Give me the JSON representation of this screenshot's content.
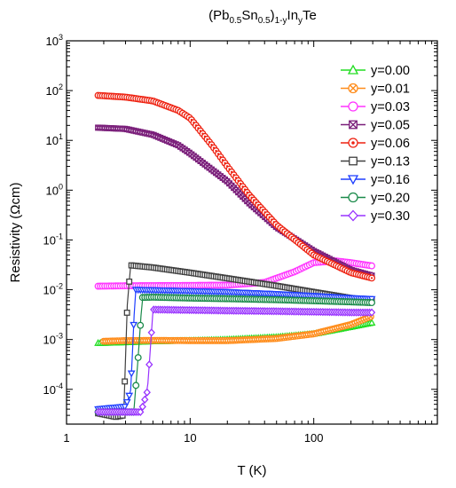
{
  "chart_data": {
    "type": "scatter",
    "title": {
      "base1": "(Pb",
      "sub1": "0.5",
      "base2": "Sn",
      "sub2": "0.5",
      "base3": ")",
      "sub3": "1-y",
      "base4": "In",
      "sub4": "y",
      "base5": "Te"
    },
    "xlabel": "T (K)",
    "ylabel": "Resistivity (Ωcm)",
    "xscale": "log",
    "yscale": "log",
    "xlim": [
      1,
      1000
    ],
    "ylim": [
      2e-05,
      1000
    ],
    "x_ticks": [
      1,
      10,
      100
    ],
    "x_tick_labels": [
      "1",
      "10",
      "100"
    ],
    "y_ticks": [
      0.0001,
      0.001,
      0.01,
      0.1,
      1,
      10,
      100,
      1000
    ],
    "y_tick_labels": [
      {
        "base": "10",
        "exp": "-4"
      },
      {
        "base": "10",
        "exp": "-3"
      },
      {
        "base": "10",
        "exp": "-2"
      },
      {
        "base": "10",
        "exp": "-1"
      },
      {
        "base": "10",
        "exp": "0"
      },
      {
        "base": "10",
        "exp": "1"
      },
      {
        "base": "10",
        "exp": "2"
      },
      {
        "base": "10",
        "exp": "3"
      }
    ],
    "grid": false,
    "legend_position": "top-right",
    "series": [
      {
        "name": "y=0.00",
        "color": "#22dd22",
        "marker": "triangle-up",
        "x": [
          1.8,
          3,
          5,
          10,
          20,
          50,
          100,
          200,
          300
        ],
        "y": [
          0.00085,
          0.00088,
          0.00092,
          0.00095,
          0.001,
          0.00112,
          0.0013,
          0.0018,
          0.0022
        ]
      },
      {
        "name": "y=0.01",
        "color": "#ff8c1a",
        "marker": "circle-x",
        "x": [
          2,
          3,
          5,
          10,
          20,
          50,
          100,
          200,
          300
        ],
        "y": [
          0.00092,
          0.00095,
          0.00096,
          0.00095,
          0.00095,
          0.00105,
          0.0013,
          0.002,
          0.003
        ]
      },
      {
        "name": "y=0.03",
        "color": "#ff33ff",
        "marker": "circle",
        "x": [
          1.8,
          3,
          5,
          10,
          20,
          40,
          70,
          100,
          150,
          200,
          300
        ],
        "y": [
          0.0118,
          0.012,
          0.0121,
          0.0122,
          0.0124,
          0.014,
          0.023,
          0.035,
          0.038,
          0.035,
          0.03
        ]
      },
      {
        "name": "y=0.05",
        "color": "#7a1f7a",
        "marker": "square-x",
        "x": [
          1.8,
          3,
          5,
          8,
          10,
          20,
          30,
          50,
          100,
          200,
          300
        ],
        "y": [
          18,
          17,
          13,
          8,
          5.5,
          1.5,
          0.55,
          0.18,
          0.06,
          0.025,
          0.019
        ]
      },
      {
        "name": "y=0.06",
        "color": "#ee2211",
        "marker": "circle-dot",
        "x": [
          1.8,
          3,
          5,
          8,
          10,
          15,
          20,
          30,
          50,
          100,
          200,
          300
        ],
        "y": [
          80,
          74,
          62,
          40,
          28,
          8,
          3,
          0.8,
          0.2,
          0.05,
          0.022,
          0.017
        ]
      },
      {
        "name": "y=0.13",
        "color": "#404040",
        "marker": "square",
        "x": [
          1.8,
          2.5,
          2.9,
          3.1,
          3.3,
          5,
          10,
          20,
          50,
          100,
          200,
          300
        ],
        "y": [
          3.3e-05,
          2.8e-05,
          3e-05,
          0.005,
          0.031,
          0.028,
          0.022,
          0.017,
          0.012,
          0.009,
          0.0068,
          0.006
        ]
      },
      {
        "name": "y=0.16",
        "color": "#1f3fff",
        "marker": "triangle-down",
        "x": [
          1.8,
          3,
          3.3,
          3.6,
          5,
          10,
          20,
          50,
          100,
          200,
          300
        ],
        "y": [
          4e-05,
          4.5e-05,
          9e-05,
          0.01,
          0.0098,
          0.0094,
          0.009,
          0.0082,
          0.0075,
          0.0068,
          0.0065
        ]
      },
      {
        "name": "y=0.20",
        "color": "#1a8a4a",
        "marker": "circle",
        "x": [
          1.8,
          3.5,
          3.8,
          4.1,
          5,
          10,
          20,
          50,
          100,
          200,
          300
        ],
        "y": [
          3.5e-05,
          3.5e-05,
          0.00045,
          0.007,
          0.0071,
          0.0068,
          0.0066,
          0.0063,
          0.006,
          0.0057,
          0.0055
        ]
      },
      {
        "name": "y=0.30",
        "color": "#9933ff",
        "marker": "diamond",
        "x": [
          1.8,
          4,
          4.5,
          4.8,
          5,
          10,
          20,
          50,
          100,
          200,
          300
        ],
        "y": [
          3.5e-05,
          3.5e-05,
          9e-05,
          0.0008,
          0.004,
          0.0039,
          0.0038,
          0.0037,
          0.0036,
          0.0035,
          0.0035
        ]
      }
    ]
  }
}
